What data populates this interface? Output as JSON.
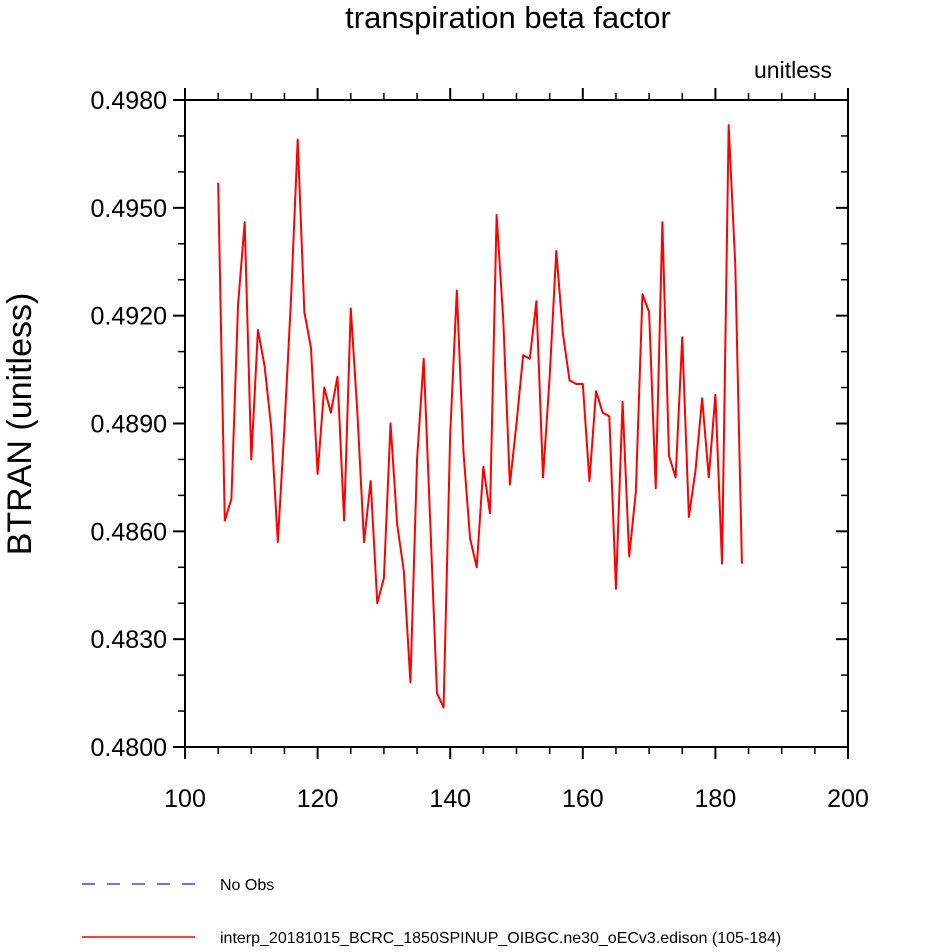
{
  "chart_data": {
    "type": "line",
    "title": "transpiration beta factor",
    "units_label": "unitless",
    "ylabel": "BTRAN  (unitless)",
    "xlabel": "",
    "xlim": [
      100,
      200
    ],
    "ylim": [
      0.48,
      0.498
    ],
    "x_ticks": [
      100,
      120,
      140,
      160,
      180,
      200
    ],
    "x_tick_labels": [
      "100",
      "120",
      "140",
      "160",
      "180",
      "200"
    ],
    "y_ticks": [
      0.48,
      0.483,
      0.486,
      0.489,
      0.492,
      0.495,
      0.498
    ],
    "y_tick_labels": [
      "0.4800",
      "0.4830",
      "0.4860",
      "0.4890",
      "0.4920",
      "0.4950",
      "0.4980"
    ],
    "grid": false,
    "legend_position": "bottom",
    "series": [
      {
        "name": "No Obs",
        "color": "#4040ff",
        "style": "dashed",
        "x": [],
        "y": []
      },
      {
        "name": "interp_20181015_BCRC_1850SPINUP_OIBGC.ne30_oECv3.edison (105-184)",
        "color": "#ff0000",
        "style": "solid",
        "x": [
          105,
          106,
          107,
          108,
          109,
          110,
          111,
          112,
          113,
          114,
          115,
          116,
          117,
          118,
          119,
          120,
          121,
          122,
          123,
          124,
          125,
          126,
          127,
          128,
          129,
          130,
          131,
          132,
          133,
          134,
          135,
          136,
          137,
          138,
          139,
          140,
          141,
          142,
          143,
          144,
          145,
          146,
          147,
          148,
          149,
          150,
          151,
          152,
          153,
          154,
          155,
          156,
          157,
          158,
          159,
          160,
          161,
          162,
          163,
          164,
          165,
          166,
          167,
          168,
          169,
          170,
          171,
          172,
          173,
          174,
          175,
          176,
          177,
          178,
          179,
          180,
          181,
          182,
          183,
          184
        ],
        "y": [
          0.4957,
          0.4863,
          0.4869,
          0.4923,
          0.4946,
          0.488,
          0.4916,
          0.4906,
          0.4889,
          0.4857,
          0.4889,
          0.4925,
          0.4969,
          0.4921,
          0.4911,
          0.4876,
          0.49,
          0.4893,
          0.4903,
          0.4863,
          0.4922,
          0.4893,
          0.4857,
          0.4874,
          0.484,
          0.4847,
          0.489,
          0.4862,
          0.4849,
          0.4818,
          0.488,
          0.4908,
          0.4862,
          0.4815,
          0.4811,
          0.4887,
          0.4927,
          0.4882,
          0.4858,
          0.485,
          0.4878,
          0.4865,
          0.4948,
          0.4919,
          0.4873,
          0.489,
          0.4909,
          0.4908,
          0.4924,
          0.4875,
          0.4903,
          0.4938,
          0.4915,
          0.4902,
          0.4901,
          0.4901,
          0.4874,
          0.4899,
          0.4893,
          0.4892,
          0.4844,
          0.4896,
          0.4853,
          0.4871,
          0.4926,
          0.4921,
          0.4872,
          0.4946,
          0.4881,
          0.4875,
          0.4914,
          0.4864,
          0.4877,
          0.4897,
          0.4875,
          0.4898,
          0.4851,
          0.4973,
          0.4934,
          0.4851
        ]
      }
    ]
  }
}
